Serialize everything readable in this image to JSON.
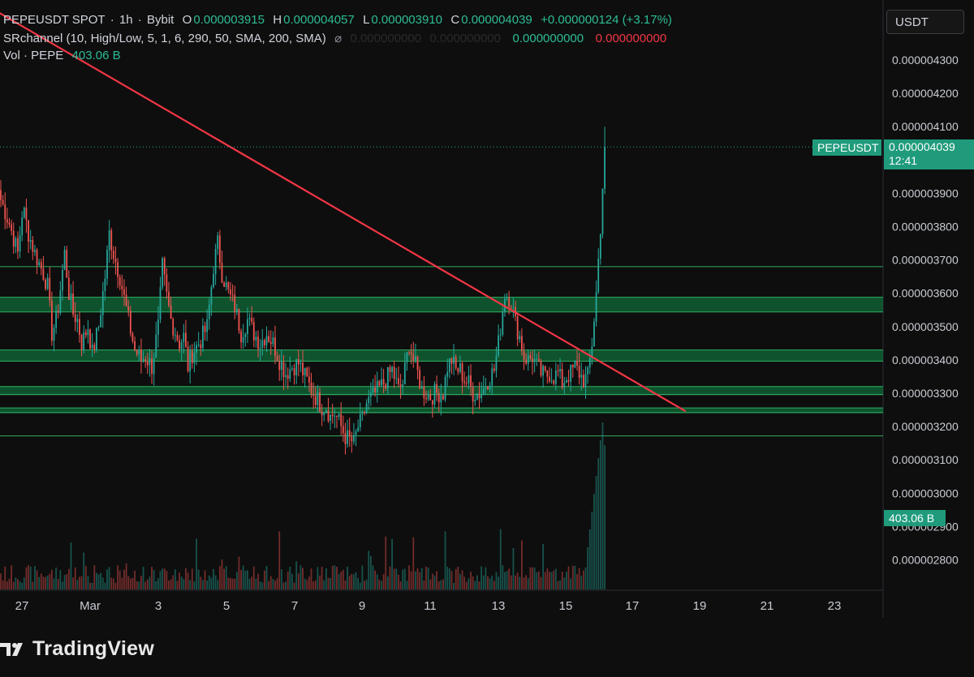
{
  "header": {
    "symbol": "PEPEUSDT SPOT",
    "interval": "1h",
    "exchange": "Bybit",
    "open_label": "O",
    "open": "0.000003915",
    "high_label": "H",
    "high": "0.000004057",
    "low_label": "L",
    "low": "0.000003910",
    "close_label": "C",
    "close": "0.000004039",
    "change": "+0.000000124 (+3.17%)",
    "indicator": "SRchannel (10, High/Low, 5, 1, 6, 290, 50, SMA, 200, SMA)",
    "indicator_icon": "eye-slash-icon",
    "ind_val1": "0.000000000",
    "ind_val2": "0.000000000",
    "ind_val3": "0.000000000",
    "ind_val4": "0.000000000",
    "vol_label": "Vol · PEPE",
    "vol_value": "403.06 B"
  },
  "currency_box": "USDT",
  "price_tag": {
    "symbol": "PEPEUSDT",
    "price": "0.000004039",
    "countdown": "12:41"
  },
  "volume_tag": "403.06 B",
  "brand": "TradingView",
  "colors": {
    "up": "#26a69a",
    "down": "#ef5350",
    "trendline": "#f23645",
    "zone": "#1e7a45",
    "background": "#0e0e0e"
  },
  "chart_data": {
    "type": "candlestick",
    "y_ticks": [
      "0.000004300",
      "0.000004200",
      "0.000004100",
      "0.000003900",
      "0.000003800",
      "0.000003700",
      "0.000003600",
      "0.000003500",
      "0.000003400",
      "0.000003300",
      "0.000003200",
      "0.000003100",
      "0.000003000",
      "0.000002900",
      "0.000002800"
    ],
    "x_ticks": [
      "27",
      "Mar",
      "3",
      "5",
      "7",
      "9",
      "11",
      "13",
      "15",
      "17",
      "19",
      "21",
      "23"
    ],
    "ylim": [
      2.7e-06,
      4.4e-06
    ],
    "current_price": 4.039e-06,
    "path": [
      [
        0,
        3.88e-06
      ],
      [
        4,
        3.81e-06
      ],
      [
        8,
        3.72e-06
      ],
      [
        10,
        3.84e-06
      ],
      [
        11,
        3.84e-06
      ],
      [
        13,
        3.78e-06
      ],
      [
        16,
        3.72e-06
      ],
      [
        20,
        3.66e-06
      ],
      [
        22,
        3.62e-06
      ],
      [
        24,
        3.48e-06
      ],
      [
        26,
        3.52e-06
      ],
      [
        27,
        3.56e-06
      ],
      [
        30,
        3.72e-06
      ],
      [
        32,
        3.6e-06
      ],
      [
        34,
        3.54e-06
      ],
      [
        36,
        3.52e-06
      ],
      [
        38,
        3.45e-06
      ],
      [
        41,
        3.5e-06
      ],
      [
        43,
        3.42e-06
      ],
      [
        46,
        3.5e-06
      ],
      [
        49,
        3.65e-06
      ],
      [
        51,
        3.78e-06
      ],
      [
        53,
        3.72e-06
      ],
      [
        56,
        3.65e-06
      ],
      [
        60,
        3.52e-06
      ],
      [
        63,
        3.43e-06
      ],
      [
        66,
        3.4e-06
      ],
      [
        68,
        3.41e-06
      ],
      [
        71,
        3.38e-06
      ],
      [
        74,
        3.5e-06
      ],
      [
        76,
        3.68e-06
      ],
      [
        78,
        3.59e-06
      ],
      [
        80,
        3.52e-06
      ],
      [
        84,
        3.45e-06
      ],
      [
        86,
        3.47e-06
      ],
      [
        88,
        3.38e-06
      ],
      [
        90,
        3.42e-06
      ],
      [
        94,
        3.46e-06
      ],
      [
        97,
        3.5e-06
      ],
      [
        100,
        3.68e-06
      ],
      [
        102,
        3.75e-06
      ],
      [
        104,
        3.66e-06
      ],
      [
        107,
        3.6e-06
      ],
      [
        110,
        3.56e-06
      ],
      [
        113,
        3.48e-06
      ],
      [
        116,
        3.52e-06
      ],
      [
        119,
        3.48e-06
      ],
      [
        122,
        3.45e-06
      ],
      [
        125,
        3.48e-06
      ],
      [
        128,
        3.45e-06
      ],
      [
        131,
        3.4e-06
      ],
      [
        134,
        3.36e-06
      ],
      [
        137,
        3.38e-06
      ],
      [
        140,
        3.39e-06
      ],
      [
        143,
        3.35e-06
      ],
      [
        146,
        3.31e-06
      ],
      [
        149,
        3.28e-06
      ],
      [
        151,
        3.26e-06
      ],
      [
        153,
        3.26e-06
      ],
      [
        155,
        3.23e-06
      ],
      [
        157,
        3.24e-06
      ],
      [
        160,
        3.2e-06
      ],
      [
        162,
        3.17e-06
      ],
      [
        164,
        3.16e-06
      ],
      [
        166,
        3.15e-06
      ],
      [
        168,
        3.2e-06
      ],
      [
        170,
        3.22e-06
      ],
      [
        172,
        3.27e-06
      ],
      [
        176,
        3.3e-06
      ],
      [
        180,
        3.33e-06
      ],
      [
        184,
        3.37e-06
      ],
      [
        187,
        3.31e-06
      ],
      [
        189,
        3.33e-06
      ],
      [
        192,
        3.45e-06
      ],
      [
        194,
        3.4e-06
      ],
      [
        196,
        3.36e-06
      ],
      [
        198,
        3.31e-06
      ],
      [
        202,
        3.29e-06
      ],
      [
        204,
        3.3e-06
      ],
      [
        208,
        3.3e-06
      ],
      [
        210,
        3.38e-06
      ],
      [
        212,
        3.4e-06
      ],
      [
        214,
        3.37e-06
      ],
      [
        216,
        3.37e-06
      ],
      [
        218,
        3.34e-06
      ],
      [
        220,
        3.33e-06
      ],
      [
        222,
        3.3e-06
      ],
      [
        224,
        3.3e-06
      ],
      [
        226,
        3.3e-06
      ],
      [
        228,
        3.33e-06
      ],
      [
        230,
        3.35e-06
      ],
      [
        232,
        3.37e-06
      ],
      [
        234,
        3.45e-06
      ],
      [
        237,
        3.6e-06
      ],
      [
        240,
        3.58e-06
      ],
      [
        242,
        3.51e-06
      ],
      [
        244,
        3.47e-06
      ],
      [
        246,
        3.41e-06
      ],
      [
        248,
        3.4e-06
      ],
      [
        250,
        3.41e-06
      ],
      [
        252,
        3.38e-06
      ],
      [
        254,
        3.36e-06
      ],
      [
        256,
        3.35e-06
      ],
      [
        258,
        3.36e-06
      ],
      [
        260,
        3.35e-06
      ],
      [
        262,
        3.36e-06
      ],
      [
        264,
        3.33e-06
      ],
      [
        266,
        3.35e-06
      ],
      [
        268,
        3.36e-06
      ],
      [
        270,
        3.38e-06
      ],
      [
        272,
        3.36e-06
      ],
      [
        274,
        3.34e-06
      ],
      [
        276,
        3.35e-06
      ],
      [
        278,
        3.45e-06
      ],
      [
        280,
        3.6e-06
      ],
      [
        282,
        3.8e-06
      ],
      [
        283,
        3.92e-06
      ],
      [
        284,
        4.04e-06
      ]
    ],
    "candle_count": 285,
    "spike_high": 4.1e-06,
    "volume_max_value": 403.06,
    "sr_zones": [
      [
        3.544e-06,
        3.588e-06
      ],
      [
        3.396e-06,
        3.43e-06
      ],
      [
        3.296e-06,
        3.32e-06
      ],
      [
        3.242e-06,
        3.256e-06
      ]
    ],
    "sr_lines": [
      3.68e-06,
      3.296e-06,
      3.242e-06,
      3.172e-06
    ],
    "trendline": {
      "from": [
        -3,
        4.45e-06
      ],
      "to": [
        322,
        3.246e-06
      ]
    }
  }
}
